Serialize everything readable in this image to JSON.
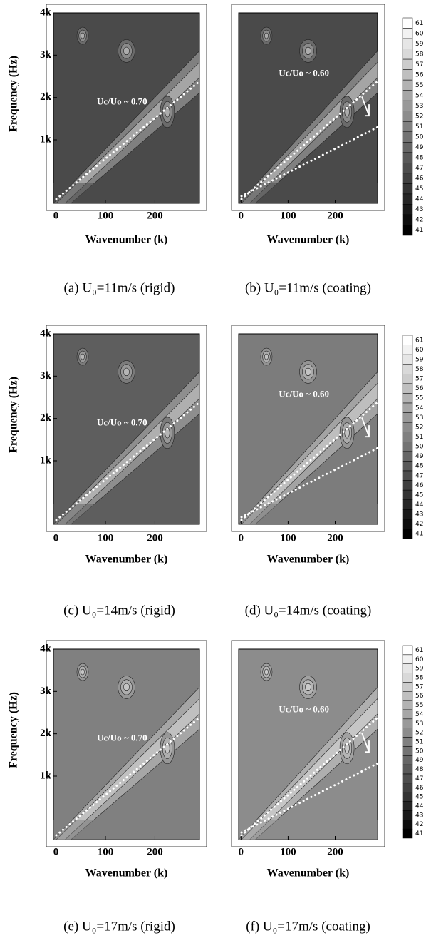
{
  "chart_data": [
    {
      "type": "contour",
      "caption": "(a)  U₀=11m/s  (rigid)",
      "xlabel": "Wavenumber (k)",
      "ylabel": "Frequency (Hz)",
      "annotation": "Uc/Uo ~ 0.70",
      "color": "#4a4a4a",
      "xlim": [
        -5,
        290
      ],
      "xticks": [
        0,
        100,
        200
      ],
      "ylim": [
        -500,
        4000
      ],
      "yticks": [
        {
          "value": 1000,
          "label": "1k"
        },
        {
          "value": 2000,
          "label": "2k"
        },
        {
          "value": 3000,
          "label": "3k"
        },
        {
          "value": 4000,
          "label": "4k"
        }
      ]
    },
    {
      "type": "contour",
      "caption": "(b)  U₀=11m/s  (coating)",
      "xlabel": "Wavenumber (k)",
      "annotation": "Uc/Uo ~ 0.60",
      "color": "#4a4a4a",
      "xlim": [
        -5,
        290
      ],
      "xticks": [
        0,
        100,
        200
      ],
      "ylim": [
        -500,
        4000
      ],
      "colorbar": {
        "levels": [
          61,
          60,
          59,
          58,
          57,
          56,
          55,
          54,
          53,
          52,
          51,
          50,
          49,
          48,
          47,
          46,
          45,
          44,
          43,
          42,
          41
        ]
      }
    },
    {
      "type": "contour",
      "caption": "(c)  U₀=14m/s  (rigid)",
      "xlabel": "Wavenumber (k)",
      "ylabel": "Frequency (Hz)",
      "annotation": "Uc/Uo ~ 0.70",
      "color": "#5e5e5e",
      "xlim": [
        -5,
        290
      ],
      "xticks": [
        0,
        100,
        200
      ],
      "ylim": [
        -500,
        4000
      ],
      "yticks": [
        {
          "value": 1000,
          "label": "1k"
        },
        {
          "value": 2000,
          "label": "2k"
        },
        {
          "value": 3000,
          "label": "3k"
        },
        {
          "value": 4000,
          "label": "4k"
        }
      ]
    },
    {
      "type": "contour",
      "caption": "(d)  U₀=14m/s  (coating)",
      "xlabel": "Wavenumber (k)",
      "annotation": "Uc/Uo ~ 0.60",
      "color": "#7c7c7c",
      "xlim": [
        -5,
        290
      ],
      "xticks": [
        0,
        100,
        200
      ],
      "ylim": [
        -500,
        4000
      ],
      "colorbar": {
        "levels": [
          61,
          60,
          59,
          58,
          57,
          56,
          55,
          54,
          53,
          52,
          51,
          50,
          49,
          48,
          47,
          46,
          45,
          44,
          43,
          42,
          41
        ]
      }
    },
    {
      "type": "contour",
      "caption": "(e)  U₀=17m/s  (rigid)",
      "xlabel": "Wavenumber (k)",
      "ylabel": "Frequency (Hz)",
      "annotation": "Uc/Uo ~ 0.70",
      "color": "#808080",
      "xlim": [
        -5,
        290
      ],
      "xticks": [
        0,
        100,
        200
      ],
      "ylim": [
        -500,
        4000
      ],
      "yticks": [
        {
          "value": 1000,
          "label": "1k"
        },
        {
          "value": 2000,
          "label": "2k"
        },
        {
          "value": 3000,
          "label": "3k"
        },
        {
          "value": 4000,
          "label": "4k"
        }
      ]
    },
    {
      "type": "contour",
      "caption": "(f)  U₀=17m/s  (coating)",
      "xlabel": "Wavenumber (k)",
      "annotation": "Uc/Uo ~ 0.60",
      "color": "#8c8c8c",
      "xlim": [
        -5,
        290
      ],
      "xticks": [
        0,
        100,
        200
      ],
      "ylim": [
        -500,
        4000
      ],
      "colorbar": {
        "levels": [
          61,
          60,
          59,
          58,
          57,
          56,
          55,
          54,
          53,
          52,
          51,
          50,
          49,
          48,
          47,
          46,
          45,
          44,
          43,
          42,
          41
        ]
      }
    }
  ]
}
